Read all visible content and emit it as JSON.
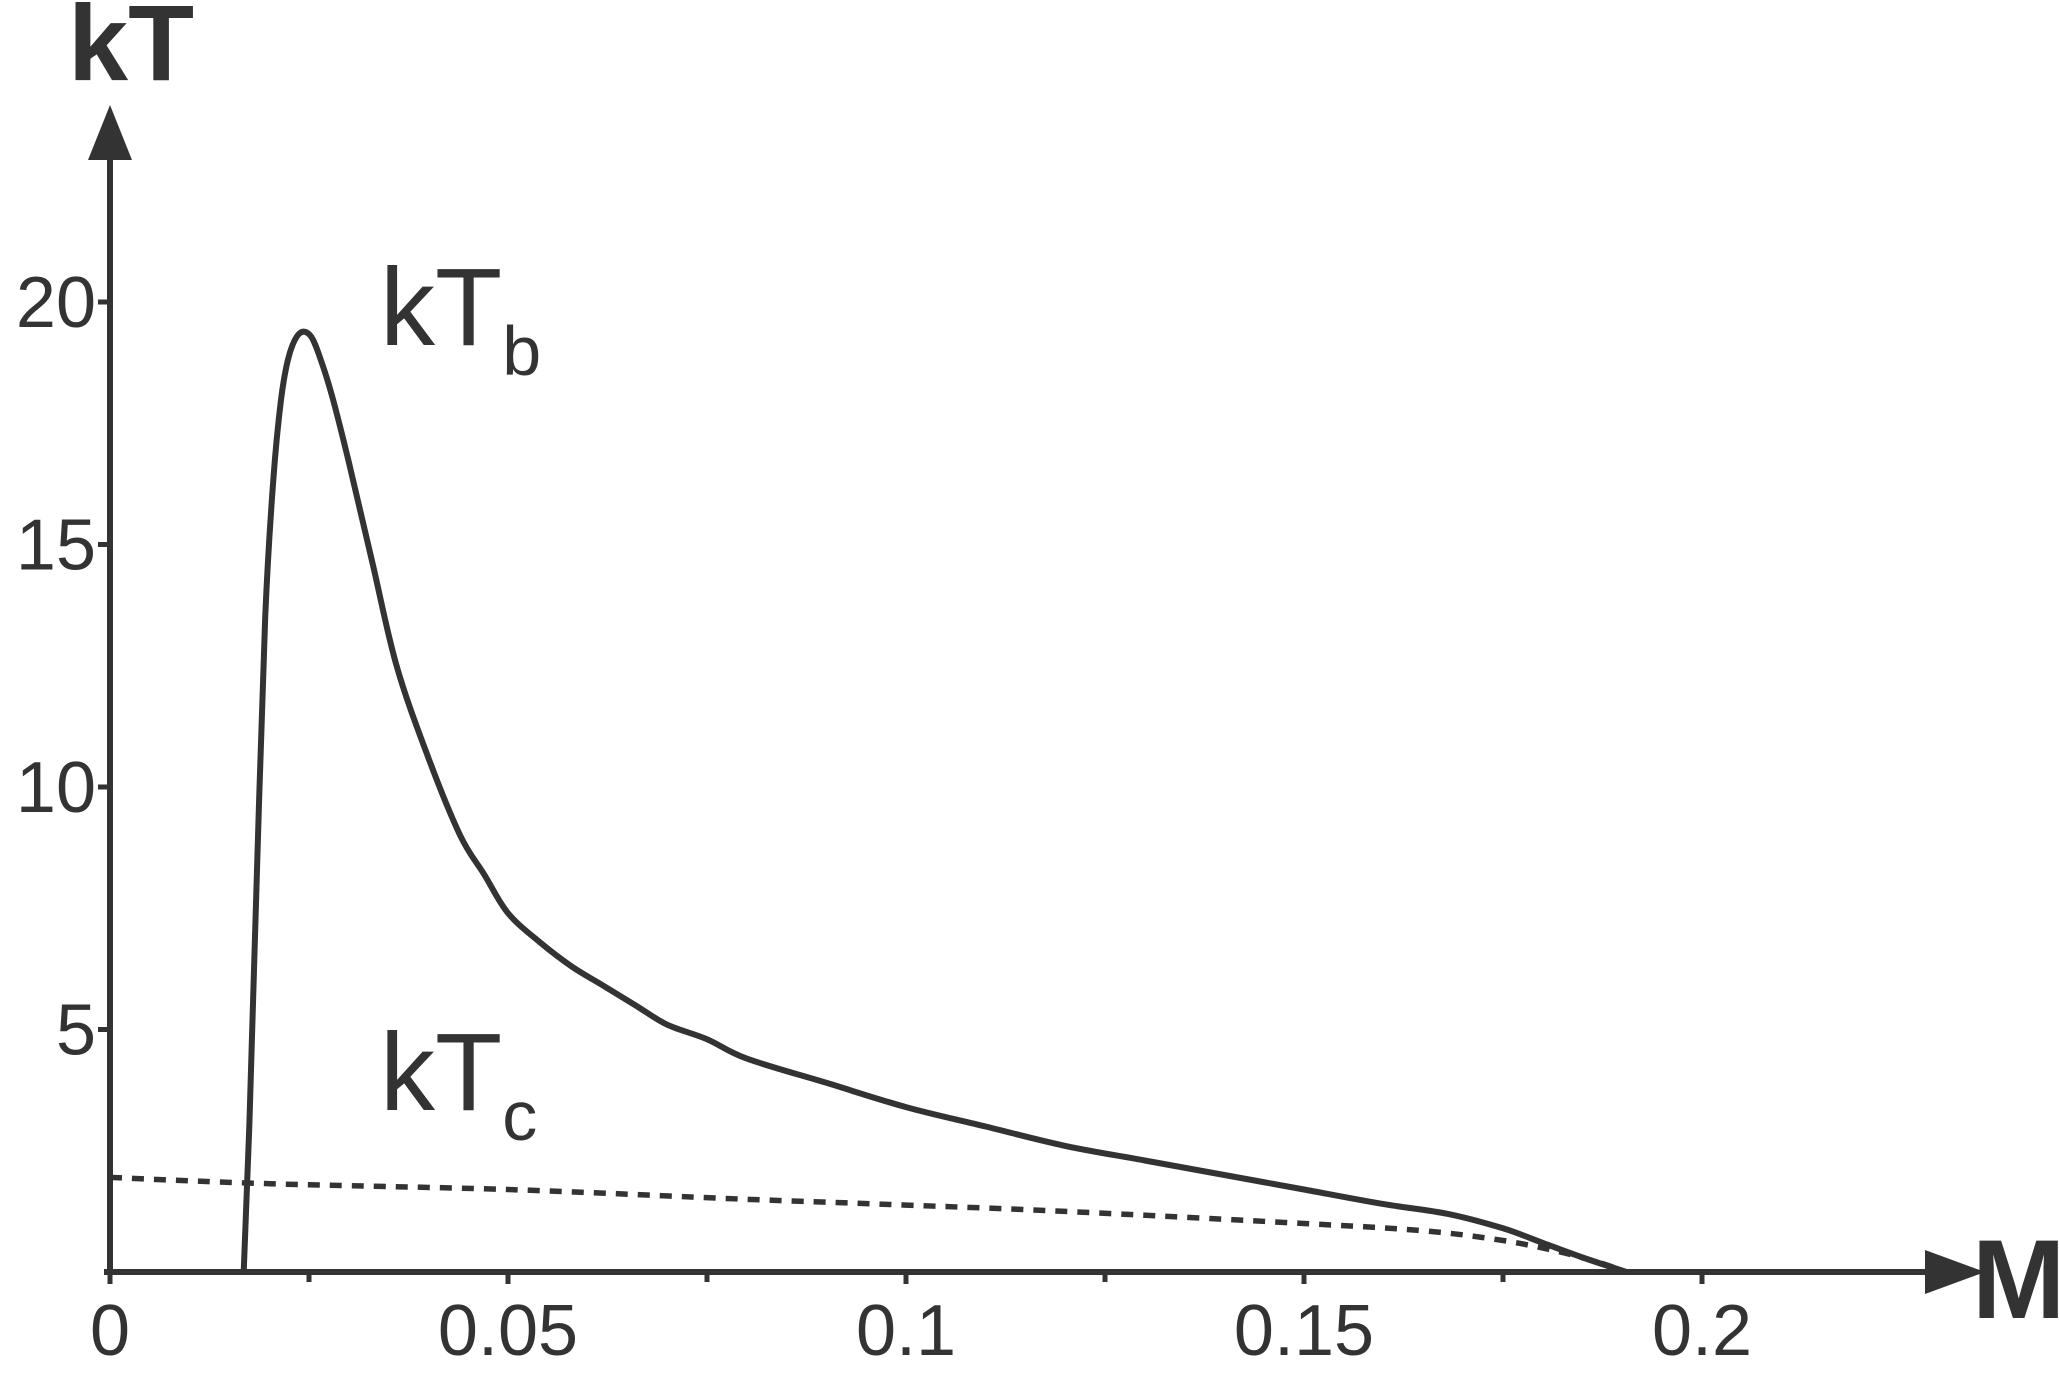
{
  "chart_data": {
    "type": "line",
    "xlabel": "M",
    "ylabel": "kT",
    "xlim": [
      0,
      0.22
    ],
    "ylim": [
      0,
      23
    ],
    "x_ticks": [
      0,
      0.05,
      0.1,
      0.15,
      0.2
    ],
    "x_tick_labels": [
      "0",
      "0.05",
      "0.1",
      "0.15",
      "0.2"
    ],
    "x_minor_ticks": [
      0.025,
      0.075,
      0.125,
      0.175
    ],
    "y_ticks": [
      5,
      10,
      15,
      20
    ],
    "y_tick_labels": [
      "5",
      "10",
      "15",
      "20"
    ],
    "grid": false,
    "series": [
      {
        "name": "kT_b",
        "label_main": "kT",
        "label_sub": "b",
        "style": "solid",
        "color": "#333333",
        "x": [
          0.0168,
          0.0175,
          0.0185,
          0.0195,
          0.0205,
          0.0215,
          0.0225,
          0.0238,
          0.0252,
          0.0265,
          0.028,
          0.03,
          0.033,
          0.036,
          0.04,
          0.044,
          0.047,
          0.05,
          0.054,
          0.058,
          0.062,
          0.066,
          0.07,
          0.075,
          0.08,
          0.09,
          0.1,
          0.11,
          0.12,
          0.13,
          0.14,
          0.15,
          0.16,
          0.168,
          0.175,
          0.18,
          0.185,
          0.1905
        ],
        "y": [
          0.0,
          3.0,
          8.5,
          13.5,
          16.3,
          18.0,
          18.9,
          19.35,
          19.3,
          18.8,
          18.0,
          16.7,
          14.6,
          12.5,
          10.6,
          9.0,
          8.2,
          7.4,
          6.8,
          6.3,
          5.9,
          5.5,
          5.1,
          4.8,
          4.4,
          3.9,
          3.4,
          3.0,
          2.6,
          2.3,
          2.0,
          1.7,
          1.4,
          1.2,
          0.9,
          0.6,
          0.3,
          0.0
        ]
      },
      {
        "name": "kT_c",
        "label_main": "kT",
        "label_sub": "c",
        "style": "dashed",
        "color": "#333333",
        "x": [
          0.0,
          0.02,
          0.05,
          0.08,
          0.1,
          0.12,
          0.15,
          0.165,
          0.175,
          0.182,
          0.187,
          0.1905
        ],
        "y": [
          1.95,
          1.82,
          1.7,
          1.5,
          1.38,
          1.25,
          1.0,
          0.85,
          0.65,
          0.42,
          0.2,
          0.0
        ]
      }
    ]
  }
}
